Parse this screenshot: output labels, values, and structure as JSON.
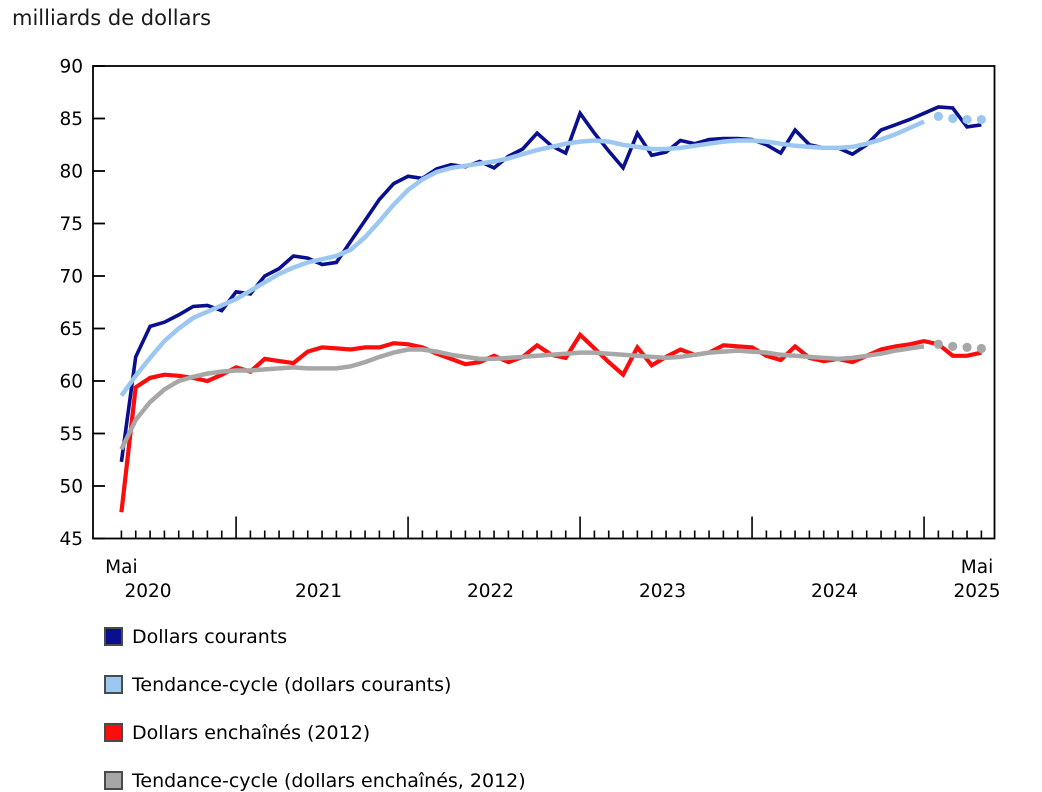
{
  "title": "milliards de dollars",
  "chart_data": {
    "type": "line",
    "title": "milliards de dollars",
    "grid": false,
    "legend_position": "bottom-left",
    "y_axis": {
      "min": 45,
      "max": 90,
      "step": 5,
      "tick_labels": [
        "45",
        "50",
        "55",
        "60",
        "65",
        "70",
        "75",
        "80",
        "85",
        "90"
      ]
    },
    "x_axis": {
      "start_month_label": "Mai",
      "end_month_label": "Mai",
      "years": [
        "2020",
        "2021",
        "2022",
        "2023",
        "2024",
        "2025"
      ],
      "frequency": "monthly",
      "range": "Mai 2020 - Mai 2025"
    },
    "series": [
      {
        "id": "dollars-courants",
        "name": "Dollars courants",
        "color": "#0A0F8F",
        "style": "solid",
        "values": [
          52.3,
          62.3,
          65.2,
          65.6,
          66.3,
          67.1,
          67.2,
          66.7,
          68.5,
          68.3,
          70.0,
          70.7,
          71.9,
          71.7,
          71.1,
          71.3,
          73.3,
          75.3,
          77.3,
          78.8,
          79.5,
          79.3,
          80.2,
          80.6,
          80.4,
          80.9,
          80.3,
          81.4,
          82.1,
          83.6,
          82.4,
          81.7,
          85.5,
          83.6,
          81.9,
          80.3,
          83.6,
          81.5,
          81.8,
          82.9,
          82.6,
          83.0,
          83.1,
          83.1,
          83.0,
          82.5,
          81.7,
          83.9,
          82.5,
          82.2,
          82.2,
          81.6,
          82.5,
          83.9,
          84.4,
          84.9,
          85.5,
          86.1,
          86.0,
          84.2,
          84.4
        ]
      },
      {
        "id": "tendance-cycle-courants",
        "name": "Tendance-cycle (dollars courants)",
        "color": "#9CC7F0",
        "style": "trend",
        "values": [
          58.6,
          60.5,
          62.2,
          63.8,
          65.0,
          66.0,
          66.6,
          67.2,
          67.8,
          68.6,
          69.4,
          70.2,
          70.8,
          71.3,
          71.6,
          71.9,
          72.5,
          73.7,
          75.2,
          76.8,
          78.2,
          79.2,
          79.9,
          80.3,
          80.5,
          80.7,
          80.9,
          81.2,
          81.6,
          82.0,
          82.3,
          82.6,
          82.8,
          82.9,
          82.8,
          82.5,
          82.3,
          82.1,
          82.1,
          82.2,
          82.4,
          82.6,
          82.8,
          82.9,
          82.9,
          82.8,
          82.6,
          82.4,
          82.3,
          82.2,
          82.2,
          82.3,
          82.6,
          83.0,
          83.5,
          84.1,
          84.7
        ],
        "projected_dots": [
          85.2,
          85.0,
          84.9,
          84.9
        ]
      },
      {
        "id": "dollars-enchaines",
        "name": "Dollars enchaînés (2012)",
        "color": "#FB0D0D",
        "style": "solid",
        "values": [
          47.5,
          59.4,
          60.3,
          60.6,
          60.5,
          60.3,
          60.0,
          60.6,
          61.3,
          60.9,
          62.1,
          61.9,
          61.7,
          62.8,
          63.2,
          63.1,
          63.0,
          63.2,
          63.2,
          63.6,
          63.5,
          63.2,
          62.6,
          62.1,
          61.6,
          61.8,
          62.4,
          61.8,
          62.3,
          63.4,
          62.5,
          62.2,
          64.4,
          63.1,
          61.8,
          60.6,
          63.2,
          61.5,
          62.3,
          63.0,
          62.5,
          62.7,
          63.4,
          63.3,
          63.2,
          62.4,
          62.0,
          63.3,
          62.2,
          61.9,
          62.1,
          61.8,
          62.4,
          63.0,
          63.3,
          63.5,
          63.8,
          63.5,
          62.4,
          62.4,
          62.7
        ]
      },
      {
        "id": "tendance-cycle-enchaines",
        "name": "Tendance-cycle (dollars enchaînés, 2012)",
        "color": "#A7A7A7",
        "style": "trend",
        "values": [
          53.5,
          56.3,
          58.0,
          59.2,
          60.0,
          60.4,
          60.7,
          60.9,
          61.0,
          61.0,
          61.1,
          61.2,
          61.3,
          61.2,
          61.2,
          61.2,
          61.4,
          61.8,
          62.3,
          62.7,
          63.0,
          63.0,
          62.8,
          62.5,
          62.3,
          62.1,
          62.1,
          62.2,
          62.3,
          62.4,
          62.5,
          62.6,
          62.7,
          62.7,
          62.6,
          62.5,
          62.4,
          62.3,
          62.2,
          62.3,
          62.5,
          62.7,
          62.8,
          62.9,
          62.8,
          62.7,
          62.5,
          62.4,
          62.3,
          62.2,
          62.1,
          62.2,
          62.4,
          62.6,
          62.9,
          63.1,
          63.3
        ],
        "projected_dots": [
          63.5,
          63.3,
          63.2,
          63.1
        ]
      }
    ]
  }
}
